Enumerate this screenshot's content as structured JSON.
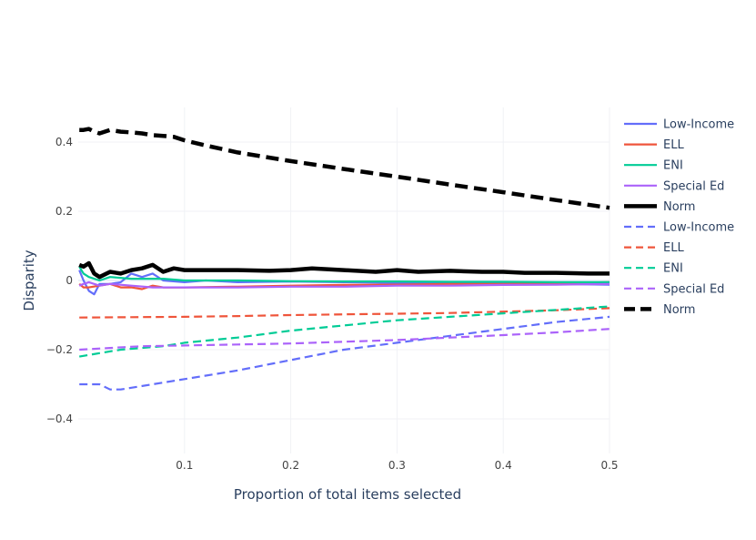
{
  "chart_data": {
    "type": "line",
    "xlabel": "Proportion of total items selected",
    "ylabel": "Disparity",
    "xlim": [
      0.0,
      0.5
    ],
    "ylim": [
      -0.5,
      0.5
    ],
    "x_ticks": [
      0.1,
      0.2,
      0.3,
      0.4,
      0.5
    ],
    "y_ticks": [
      -0.4,
      -0.2,
      0,
      0.2,
      0.4
    ],
    "x_tick_labels": [
      "0.1",
      "0.2",
      "0.3",
      "0.4",
      "0.5"
    ],
    "y_tick_labels": [
      "−0.4",
      "−0.2",
      "0",
      "0.2",
      "0.4"
    ],
    "grid": true,
    "legend_position": "right",
    "series": [
      {
        "name": "Low-Income",
        "color": "#636efa",
        "dash": "solid",
        "width": 2.2,
        "points": [
          [
            0.001,
            0.03
          ],
          [
            0.005,
            0.0
          ],
          [
            0.01,
            -0.03
          ],
          [
            0.015,
            -0.04
          ],
          [
            0.02,
            -0.01
          ],
          [
            0.03,
            -0.01
          ],
          [
            0.04,
            -0.005
          ],
          [
            0.05,
            0.02
          ],
          [
            0.06,
            0.01
          ],
          [
            0.07,
            0.02
          ],
          [
            0.08,
            0.0
          ],
          [
            0.1,
            -0.005
          ],
          [
            0.12,
            0.0
          ],
          [
            0.15,
            -0.005
          ],
          [
            0.2,
            -0.003
          ],
          [
            0.25,
            -0.005
          ],
          [
            0.3,
            -0.007
          ],
          [
            0.35,
            -0.008
          ],
          [
            0.4,
            -0.008
          ],
          [
            0.45,
            -0.01
          ],
          [
            0.5,
            -0.012
          ]
        ]
      },
      {
        "name": "ELL",
        "color": "#ef553b",
        "dash": "solid",
        "width": 2.2,
        "points": [
          [
            0.001,
            -0.01
          ],
          [
            0.005,
            -0.02
          ],
          [
            0.01,
            -0.02
          ],
          [
            0.02,
            -0.015
          ],
          [
            0.03,
            -0.01
          ],
          [
            0.04,
            -0.02
          ],
          [
            0.05,
            -0.02
          ],
          [
            0.06,
            -0.025
          ],
          [
            0.07,
            -0.015
          ],
          [
            0.08,
            -0.02
          ],
          [
            0.1,
            -0.02
          ],
          [
            0.15,
            -0.018
          ],
          [
            0.2,
            -0.015
          ],
          [
            0.25,
            -0.013
          ],
          [
            0.3,
            -0.012
          ],
          [
            0.35,
            -0.01
          ],
          [
            0.4,
            -0.01
          ],
          [
            0.45,
            -0.008
          ],
          [
            0.5,
            -0.005
          ]
        ]
      },
      {
        "name": "ENI",
        "color": "#00cc96",
        "dash": "solid",
        "width": 2.2,
        "points": [
          [
            0.001,
            0.04
          ],
          [
            0.005,
            0.02
          ],
          [
            0.01,
            0.01
          ],
          [
            0.02,
            0.0
          ],
          [
            0.03,
            0.01
          ],
          [
            0.05,
            0.005
          ],
          [
            0.08,
            0.005
          ],
          [
            0.1,
            0.0
          ],
          [
            0.15,
            0.0
          ],
          [
            0.2,
            -0.002
          ],
          [
            0.25,
            -0.003
          ],
          [
            0.3,
            -0.003
          ],
          [
            0.35,
            -0.004
          ],
          [
            0.4,
            -0.004
          ],
          [
            0.45,
            -0.005
          ],
          [
            0.5,
            -0.005
          ]
        ]
      },
      {
        "name": "Special Ed",
        "color": "#ab63fa",
        "dash": "solid",
        "width": 2.2,
        "points": [
          [
            0.001,
            -0.015
          ],
          [
            0.005,
            -0.01
          ],
          [
            0.01,
            -0.005
          ],
          [
            0.02,
            -0.015
          ],
          [
            0.03,
            -0.01
          ],
          [
            0.05,
            -0.015
          ],
          [
            0.07,
            -0.02
          ],
          [
            0.1,
            -0.02
          ],
          [
            0.15,
            -0.02
          ],
          [
            0.2,
            -0.018
          ],
          [
            0.25,
            -0.018
          ],
          [
            0.3,
            -0.015
          ],
          [
            0.35,
            -0.015
          ],
          [
            0.4,
            -0.013
          ],
          [
            0.45,
            -0.012
          ],
          [
            0.5,
            -0.01
          ]
        ]
      },
      {
        "name": "Norm",
        "color": "#000000",
        "dash": "solid",
        "width": 4.5,
        "points": [
          [
            0.001,
            0.045
          ],
          [
            0.005,
            0.04
          ],
          [
            0.01,
            0.05
          ],
          [
            0.015,
            0.02
          ],
          [
            0.02,
            0.01
          ],
          [
            0.03,
            0.025
          ],
          [
            0.04,
            0.02
          ],
          [
            0.05,
            0.03
          ],
          [
            0.06,
            0.035
          ],
          [
            0.07,
            0.045
          ],
          [
            0.08,
            0.025
          ],
          [
            0.09,
            0.035
          ],
          [
            0.1,
            0.03
          ],
          [
            0.12,
            0.03
          ],
          [
            0.15,
            0.03
          ],
          [
            0.18,
            0.028
          ],
          [
            0.2,
            0.03
          ],
          [
            0.22,
            0.035
          ],
          [
            0.25,
            0.03
          ],
          [
            0.28,
            0.025
          ],
          [
            0.3,
            0.03
          ],
          [
            0.32,
            0.025
          ],
          [
            0.35,
            0.028
          ],
          [
            0.38,
            0.025
          ],
          [
            0.4,
            0.025
          ],
          [
            0.42,
            0.022
          ],
          [
            0.45,
            0.022
          ],
          [
            0.48,
            0.02
          ],
          [
            0.5,
            0.02
          ]
        ]
      },
      {
        "name": "Low-Income",
        "color": "#636efa",
        "dash": "dash",
        "width": 2.2,
        "points": [
          [
            0.001,
            -0.3
          ],
          [
            0.01,
            -0.3
          ],
          [
            0.02,
            -0.3
          ],
          [
            0.03,
            -0.315
          ],
          [
            0.04,
            -0.315
          ],
          [
            0.05,
            -0.31
          ],
          [
            0.08,
            -0.295
          ],
          [
            0.1,
            -0.285
          ],
          [
            0.15,
            -0.26
          ],
          [
            0.2,
            -0.23
          ],
          [
            0.25,
            -0.2
          ],
          [
            0.3,
            -0.18
          ],
          [
            0.35,
            -0.16
          ],
          [
            0.4,
            -0.14
          ],
          [
            0.45,
            -0.12
          ],
          [
            0.5,
            -0.105
          ]
        ]
      },
      {
        "name": "ELL",
        "color": "#ef553b",
        "dash": "dash",
        "width": 2.2,
        "points": [
          [
            0.001,
            -0.107
          ],
          [
            0.05,
            -0.106
          ],
          [
            0.1,
            -0.105
          ],
          [
            0.15,
            -0.103
          ],
          [
            0.2,
            -0.1
          ],
          [
            0.25,
            -0.098
          ],
          [
            0.3,
            -0.096
          ],
          [
            0.35,
            -0.094
          ],
          [
            0.4,
            -0.09
          ],
          [
            0.45,
            -0.086
          ],
          [
            0.5,
            -0.08
          ]
        ]
      },
      {
        "name": "ENI",
        "color": "#00cc96",
        "dash": "dash",
        "width": 2.2,
        "points": [
          [
            0.001,
            -0.22
          ],
          [
            0.02,
            -0.21
          ],
          [
            0.04,
            -0.2
          ],
          [
            0.06,
            -0.195
          ],
          [
            0.08,
            -0.19
          ],
          [
            0.1,
            -0.18
          ],
          [
            0.15,
            -0.165
          ],
          [
            0.2,
            -0.145
          ],
          [
            0.25,
            -0.13
          ],
          [
            0.3,
            -0.115
          ],
          [
            0.35,
            -0.105
          ],
          [
            0.4,
            -0.095
          ],
          [
            0.45,
            -0.085
          ],
          [
            0.5,
            -0.075
          ]
        ]
      },
      {
        "name": "Special Ed",
        "color": "#ab63fa",
        "dash": "dash",
        "width": 2.2,
        "points": [
          [
            0.001,
            -0.2
          ],
          [
            0.03,
            -0.195
          ],
          [
            0.06,
            -0.19
          ],
          [
            0.1,
            -0.188
          ],
          [
            0.15,
            -0.185
          ],
          [
            0.2,
            -0.182
          ],
          [
            0.25,
            -0.177
          ],
          [
            0.3,
            -0.172
          ],
          [
            0.35,
            -0.165
          ],
          [
            0.4,
            -0.158
          ],
          [
            0.45,
            -0.15
          ],
          [
            0.5,
            -0.14
          ]
        ]
      },
      {
        "name": "Norm",
        "color": "#000000",
        "dash": "dash",
        "width": 4.5,
        "points": [
          [
            0.001,
            0.435
          ],
          [
            0.005,
            0.435
          ],
          [
            0.01,
            0.438
          ],
          [
            0.015,
            0.43
          ],
          [
            0.02,
            0.425
          ],
          [
            0.03,
            0.435
          ],
          [
            0.04,
            0.43
          ],
          [
            0.05,
            0.428
          ],
          [
            0.06,
            0.425
          ],
          [
            0.07,
            0.42
          ],
          [
            0.08,
            0.418
          ],
          [
            0.09,
            0.415
          ],
          [
            0.1,
            0.405
          ],
          [
            0.12,
            0.39
          ],
          [
            0.15,
            0.37
          ],
          [
            0.2,
            0.345
          ],
          [
            0.25,
            0.322
          ],
          [
            0.3,
            0.3
          ],
          [
            0.35,
            0.277
          ],
          [
            0.4,
            0.255
          ],
          [
            0.45,
            0.232
          ],
          [
            0.5,
            0.21
          ]
        ]
      }
    ]
  }
}
